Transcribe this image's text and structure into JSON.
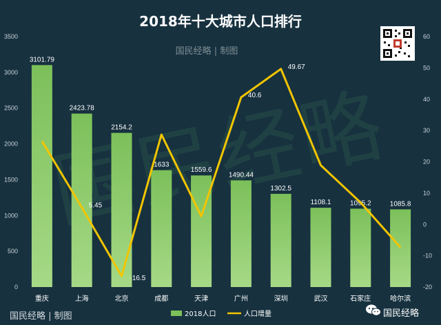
{
  "header": {
    "title": "2018年十大城市人口排行",
    "subtitle": "国民经略 | 制图"
  },
  "footer": {
    "left_caption": "国民经略 | 制图",
    "brand": "国民经略"
  },
  "watermark": {
    "text": "国民经略"
  },
  "colors": {
    "background": "#17313f",
    "bar": "#7cc05a",
    "bar_light": "#a6d986",
    "line": "#f2c500",
    "axis_text": "#c9d3d9"
  },
  "chart_data": {
    "type": "bar",
    "categories": [
      "重庆",
      "上海",
      "北京",
      "成都",
      "天津",
      "广州",
      "深圳",
      "武汉",
      "石家庄",
      "哈尔滨"
    ],
    "series": [
      {
        "name": "2018人口",
        "type": "bar",
        "axis": "left",
        "values": [
          3101.79,
          2423.78,
          2154.2,
          1633,
          1559.6,
          1490.44,
          1302.5,
          1108.1,
          1095.2,
          1085.8
        ],
        "labels": [
          "3101.79",
          "2423.78",
          "2154.2",
          "1633",
          "1559.6",
          "1490.44",
          "1302.5",
          "1108.1",
          "1095.2",
          "1085.8"
        ]
      },
      {
        "name": "人口增量",
        "type": "line",
        "axis": "right",
        "values": [
          26.6,
          5.45,
          -16.5,
          28.7,
          2.6,
          40.6,
          49.67,
          18.9,
          7.0,
          -7.3
        ],
        "labels": [
          "",
          "5.45",
          "-16.5",
          "",
          "",
          "40.6",
          "49.67",
          "",
          "",
          ""
        ]
      }
    ],
    "y_left": {
      "min": 0,
      "max": 3500,
      "ticks": [
        "0",
        "500",
        "1000",
        "1500",
        "2000",
        "2500",
        "3000",
        "3500"
      ]
    },
    "y_right": {
      "min": -20,
      "max": 60,
      "ticks": [
        "-20",
        "-10",
        "0",
        "10",
        "20",
        "30",
        "40",
        "50",
        "60"
      ]
    },
    "grid": false,
    "legend_position": "bottom-center"
  }
}
